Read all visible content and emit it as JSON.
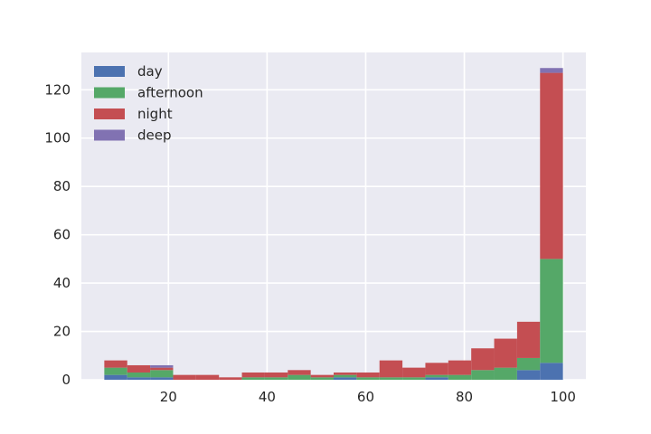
{
  "chart_data": {
    "type": "bar",
    "stacked": true,
    "histogram": true,
    "bin_edges": [
      7.0,
      11.65,
      16.3,
      20.95,
      25.6,
      30.25,
      34.9,
      39.55,
      44.2,
      48.85,
      53.5,
      58.15,
      62.8,
      67.45,
      72.1,
      76.75,
      81.4,
      86.05,
      90.7,
      95.35,
      100.0
    ],
    "series": [
      {
        "name": "day",
        "color": "#4c72b0",
        "values": [
          2,
          1,
          1,
          0,
          0,
          0,
          0,
          0,
          0,
          0,
          1,
          0,
          0,
          0,
          1,
          0,
          0,
          0,
          4,
          7
        ]
      },
      {
        "name": "afternoon",
        "color": "#55a868",
        "values": [
          3,
          2,
          3,
          0,
          0,
          0,
          1,
          1,
          2,
          1,
          1,
          1,
          1,
          1,
          1,
          2,
          4,
          5,
          5,
          43
        ]
      },
      {
        "name": "night",
        "color": "#c44e52",
        "values": [
          3,
          3,
          1,
          2,
          2,
          1,
          2,
          2,
          2,
          1,
          1,
          2,
          7,
          4,
          5,
          6,
          9,
          12,
          15,
          77
        ]
      },
      {
        "name": "deep",
        "color": "#8172b2",
        "values": [
          0,
          0,
          1,
          0,
          0,
          0,
          0,
          0,
          0,
          0,
          0,
          0,
          0,
          0,
          0,
          0,
          0,
          0,
          0,
          2
        ]
      }
    ],
    "xlim": [
      2.35,
      104.65
    ],
    "ylim": [
      0,
      135.45
    ],
    "xticks": [
      20,
      40,
      60,
      80,
      100
    ],
    "yticks": [
      0,
      20,
      40,
      60,
      80,
      100,
      120
    ],
    "grid": true,
    "legend_position": "top-left",
    "title": "",
    "xlabel": "",
    "ylabel": ""
  }
}
